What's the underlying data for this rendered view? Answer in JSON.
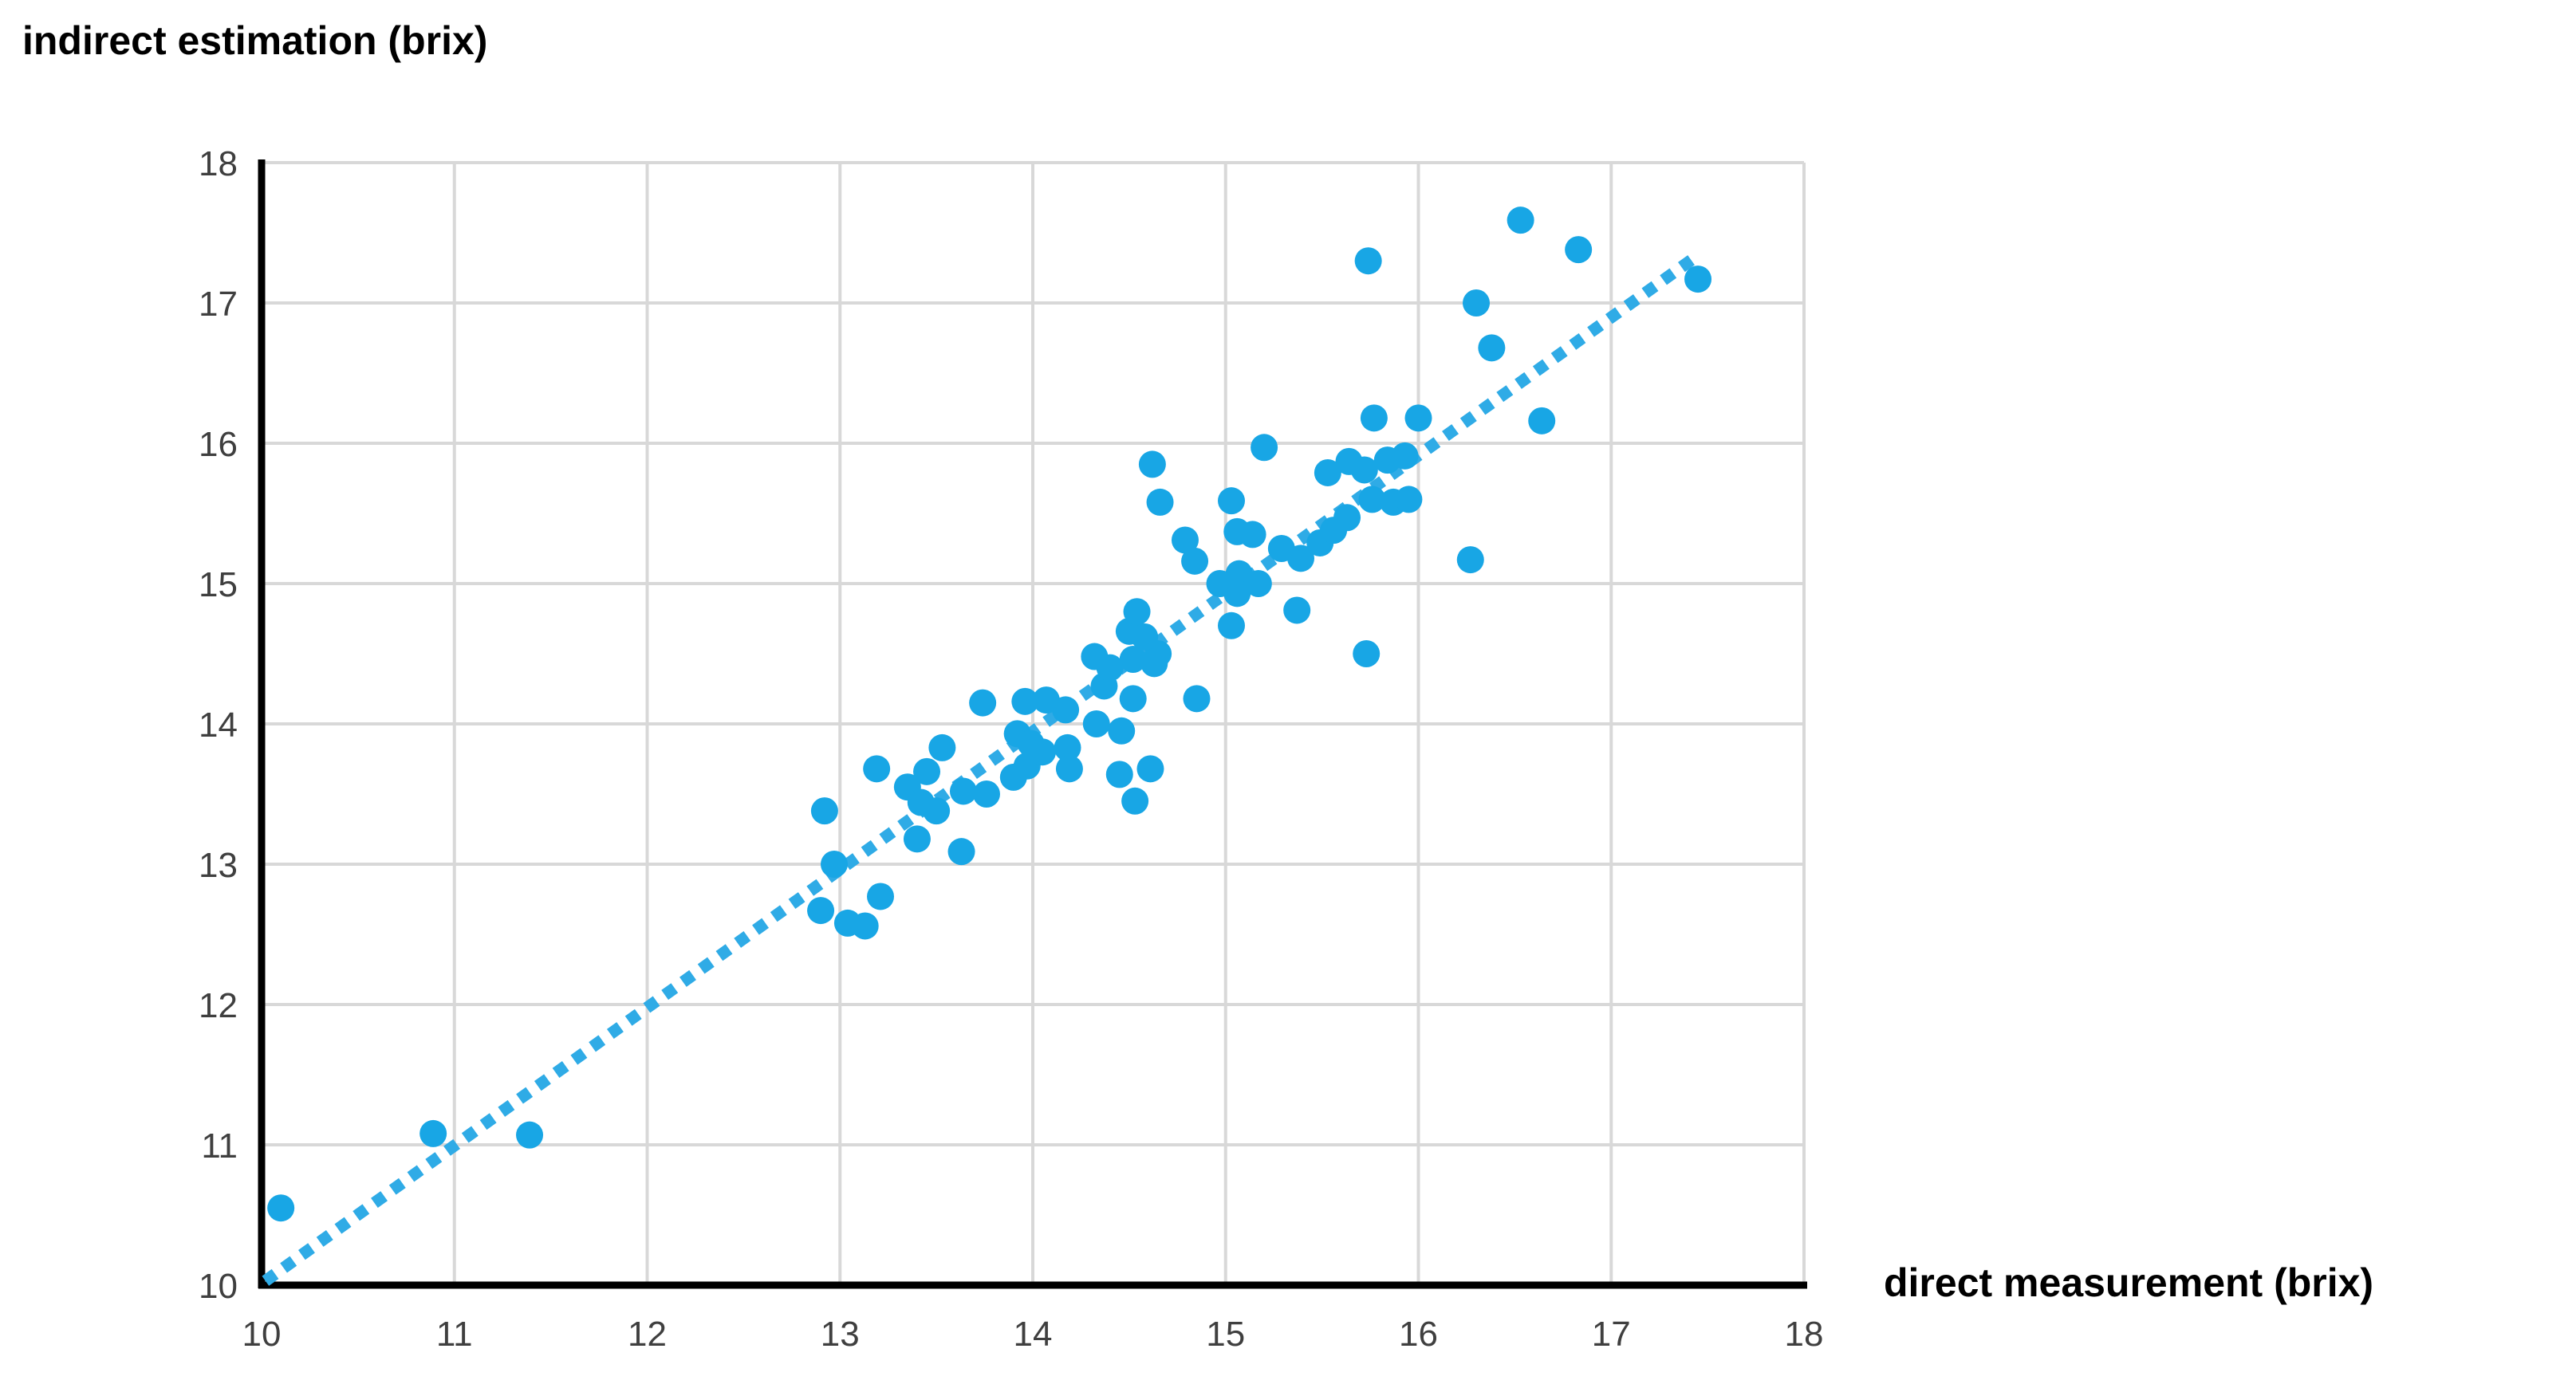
{
  "chart_data": {
    "type": "scatter",
    "y_axis_label": "indirect estimation (brix)",
    "x_axis_label": "direct measurement (brix)",
    "xlim": [
      10,
      18
    ],
    "ylim": [
      10,
      18
    ],
    "x_ticks": [
      10,
      11,
      12,
      13,
      14,
      15,
      16,
      17,
      18
    ],
    "y_ticks": [
      10,
      11,
      12,
      13,
      14,
      15,
      16,
      17,
      18
    ],
    "grid": true,
    "legend": "none",
    "point_color": "#18A6E5",
    "trend_color": "#2FABE6",
    "grid_color": "#D8D8D8",
    "axis_color": "#000000",
    "tick_color": "#3F3F3F",
    "trend_line": {
      "style": "dotted",
      "x1": 10.02,
      "y1": 10.03,
      "x2": 17.44,
      "y2": 17.33
    },
    "points": [
      [
        10.1,
        10.55
      ],
      [
        10.89,
        11.08
      ],
      [
        11.39,
        11.07
      ],
      [
        12.92,
        13.38
      ],
      [
        12.97,
        13.0
      ],
      [
        12.9,
        12.67
      ],
      [
        13.04,
        12.58
      ],
      [
        13.13,
        12.56
      ],
      [
        13.21,
        12.77
      ],
      [
        13.4,
        13.18
      ],
      [
        13.63,
        13.09
      ],
      [
        13.19,
        13.68
      ],
      [
        13.35,
        13.55
      ],
      [
        13.45,
        13.66
      ],
      [
        13.42,
        13.44
      ],
      [
        13.5,
        13.38
      ],
      [
        13.53,
        13.83
      ],
      [
        13.64,
        13.52
      ],
      [
        13.76,
        13.5
      ],
      [
        13.9,
        13.62
      ],
      [
        13.97,
        13.7
      ],
      [
        13.74,
        14.15
      ],
      [
        13.96,
        14.16
      ],
      [
        14.07,
        14.17
      ],
      [
        14.17,
        14.1
      ],
      [
        13.92,
        13.93
      ],
      [
        13.99,
        13.86
      ],
      [
        14.05,
        13.8
      ],
      [
        14.18,
        13.83
      ],
      [
        14.19,
        13.68
      ],
      [
        14.45,
        13.64
      ],
      [
        14.53,
        13.45
      ],
      [
        14.61,
        13.68
      ],
      [
        14.33,
        14.0
      ],
      [
        14.46,
        13.95
      ],
      [
        14.52,
        14.18
      ],
      [
        14.85,
        14.18
      ],
      [
        14.37,
        14.27
      ],
      [
        14.32,
        14.48
      ],
      [
        14.4,
        14.4
      ],
      [
        14.52,
        14.46
      ],
      [
        14.63,
        14.43
      ],
      [
        14.65,
        14.5
      ],
      [
        14.5,
        14.66
      ],
      [
        14.58,
        14.62
      ],
      [
        14.54,
        14.8
      ],
      [
        14.62,
        15.85
      ],
      [
        14.66,
        15.58
      ],
      [
        14.79,
        15.31
      ],
      [
        14.84,
        15.16
      ],
      [
        14.97,
        15.0
      ],
      [
        15.07,
        15.07
      ],
      [
        15.17,
        15.0
      ],
      [
        15.06,
        14.93
      ],
      [
        15.03,
        14.7
      ],
      [
        15.03,
        15.59
      ],
      [
        15.06,
        15.37
      ],
      [
        15.14,
        15.35
      ],
      [
        15.2,
        15.97
      ],
      [
        15.29,
        15.25
      ],
      [
        15.39,
        15.18
      ],
      [
        15.37,
        14.81
      ],
      [
        15.49,
        15.29
      ],
      [
        15.56,
        15.38
      ],
      [
        15.63,
        15.47
      ],
      [
        15.73,
        14.5
      ],
      [
        15.53,
        15.79
      ],
      [
        15.64,
        15.87
      ],
      [
        15.72,
        15.81
      ],
      [
        15.84,
        15.88
      ],
      [
        15.93,
        15.91
      ],
      [
        15.76,
        15.6
      ],
      [
        15.87,
        15.58
      ],
      [
        15.95,
        15.6
      ],
      [
        15.74,
        17.3
      ],
      [
        15.77,
        16.18
      ],
      [
        16.0,
        16.18
      ],
      [
        16.27,
        15.17
      ],
      [
        16.3,
        17.0
      ],
      [
        16.38,
        16.68
      ],
      [
        16.53,
        17.59
      ],
      [
        16.64,
        16.16
      ],
      [
        16.83,
        17.38
      ],
      [
        17.45,
        17.17
      ]
    ]
  }
}
